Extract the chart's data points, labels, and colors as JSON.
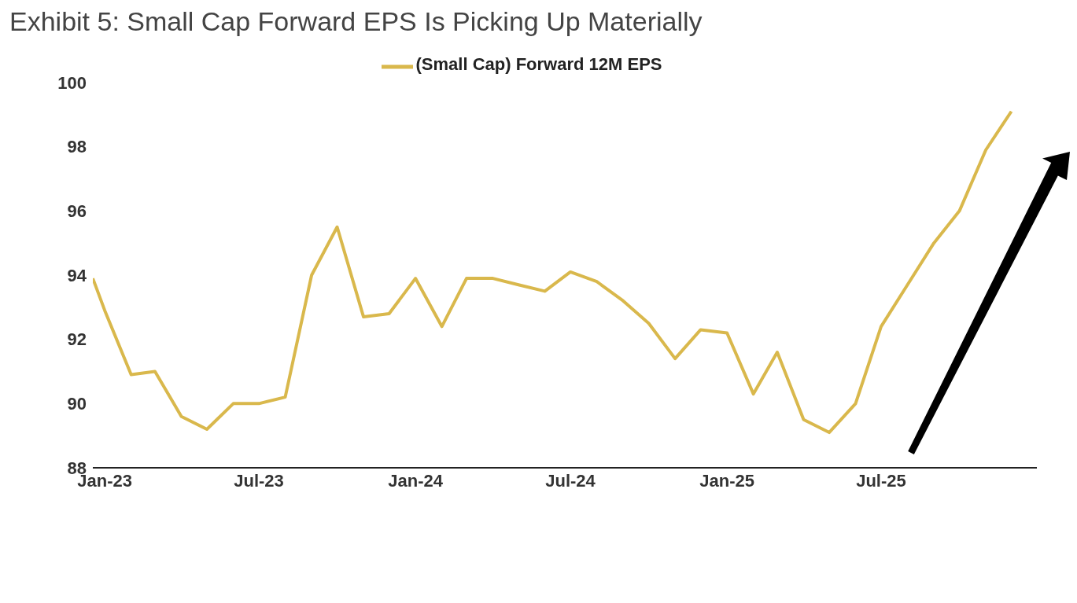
{
  "chart_data": {
    "type": "line",
    "title": "Exhibit 5: Small Cap Forward EPS Is Picking Up Materially",
    "x": [
      "2022-12-18",
      "2023-01",
      "2023-02",
      "2023-03",
      "2023-04",
      "2023-05",
      "2023-06",
      "2023-07",
      "2023-08",
      "2023-09",
      "2023-10",
      "2023-11",
      "2023-12",
      "2024-01",
      "2024-02",
      "2024-03",
      "2024-04",
      "2024-05",
      "2024-06",
      "2024-07",
      "2024-08",
      "2024-09",
      "2024-10",
      "2024-11",
      "2024-12",
      "2025-01",
      "2025-02",
      "2025-03",
      "2025-04",
      "2025-05",
      "2025-06",
      "2025-07",
      "2025-08",
      "2025-09",
      "2025-10",
      "2025-11",
      "2025-12"
    ],
    "series": [
      {
        "name": "(Small Cap) Forward 12M EPS",
        "color": "#d9b84c",
        "values": [
          93.9,
          92.9,
          90.9,
          91.0,
          89.6,
          89.2,
          90.0,
          90.0,
          90.2,
          94.0,
          95.5,
          92.7,
          92.8,
          93.9,
          92.4,
          93.9,
          93.9,
          93.7,
          93.5,
          94.1,
          93.8,
          93.2,
          92.5,
          91.4,
          92.3,
          92.2,
          90.3,
          91.6,
          89.5,
          89.1,
          90.0,
          92.4,
          93.7,
          95.0,
          96.0,
          97.9,
          99.1
        ]
      }
    ],
    "xlim": [
      "2022-12-18",
      "2025-12-31"
    ],
    "xticks": [
      {
        "value": "2023-01",
        "label": "Jan-23"
      },
      {
        "value": "2023-07",
        "label": "Jul-23"
      },
      {
        "value": "2024-01",
        "label": "Jan-24"
      },
      {
        "value": "2024-07",
        "label": "Jul-24"
      },
      {
        "value": "2025-01",
        "label": "Jan-25"
      },
      {
        "value": "2025-07",
        "label": "Jul-25"
      }
    ],
    "ylim": [
      88,
      100
    ],
    "yticks": [
      88,
      90,
      92,
      94,
      96,
      98,
      100
    ],
    "grid": false,
    "legend": "top",
    "marker": "none",
    "line_style": "solid"
  }
}
